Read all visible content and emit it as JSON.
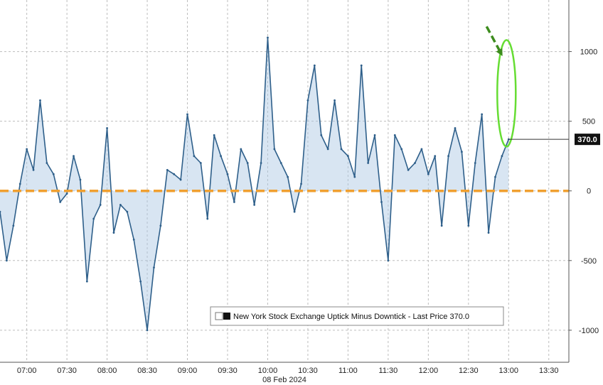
{
  "chart_data": {
    "type": "line",
    "date_label": "08 Feb 2024",
    "x_ticks": [
      "07:00",
      "07:30",
      "08:00",
      "08:30",
      "09:00",
      "09:30",
      "10:00",
      "10:30",
      "11:00",
      "11:30",
      "12:00",
      "12:30",
      "13:00",
      "13:30"
    ],
    "y_ticks": [
      1000,
      500,
      0,
      -500,
      -1000
    ],
    "y_tick_labels": [
      "1000",
      "500",
      "0",
      "-500",
      "-1000"
    ],
    "ylim": [
      -1230,
      1370
    ],
    "xlim": [
      "06:40",
      "13:45"
    ],
    "grid": true,
    "legend": "New York Stock Exchange Uptick Minus Downtick - Last Price 370.0",
    "legend_placement": "bottom-right",
    "last_price_label": "370.0",
    "last_price": 370,
    "zero_line": 0,
    "series": [
      {
        "x": [
          "06:40",
          "06:45",
          "06:50",
          "06:55",
          "07:00",
          "07:05",
          "07:10",
          "07:15",
          "07:20",
          "07:25",
          "07:30",
          "07:35",
          "07:40",
          "07:45",
          "07:50",
          "07:55",
          "08:00",
          "08:05",
          "08:10",
          "08:15",
          "08:20",
          "08:25",
          "08:30",
          "08:35",
          "08:40",
          "08:45",
          "08:50",
          "08:55",
          "09:00",
          "09:05",
          "09:10",
          "09:15",
          "09:20",
          "09:25",
          "09:30",
          "09:35",
          "09:40",
          "09:45",
          "09:50",
          "09:55",
          "10:00",
          "10:05",
          "10:10",
          "10:15",
          "10:20",
          "10:25",
          "10:30",
          "10:35",
          "10:40",
          "10:45",
          "10:50",
          "10:55",
          "11:00",
          "11:05",
          "11:10",
          "11:15",
          "11:20",
          "11:25",
          "11:30",
          "11:35",
          "11:40",
          "11:45",
          "11:50",
          "11:55",
          "12:00",
          "12:05",
          "12:10",
          "12:15",
          "12:20",
          "12:25",
          "12:30",
          "12:35",
          "12:40",
          "12:45",
          "12:50",
          "12:55",
          "13:00"
        ],
        "values": [
          -150,
          -500,
          -250,
          50,
          300,
          150,
          650,
          200,
          120,
          -80,
          -20,
          250,
          80,
          -650,
          -200,
          -100,
          450,
          -300,
          -100,
          -150,
          -350,
          -650,
          -1000,
          -550,
          -250,
          150,
          120,
          80,
          550,
          250,
          200,
          -200,
          400,
          250,
          120,
          -80,
          300,
          200,
          -100,
          200,
          1100,
          300,
          200,
          100,
          -150,
          50,
          650,
          900,
          400,
          300,
          650,
          300,
          250,
          100,
          900,
          200,
          400,
          -80,
          -500,
          400,
          300,
          150,
          200,
          300,
          120,
          250,
          -250,
          250,
          450,
          280,
          -250,
          200,
          550,
          -300,
          100,
          250,
          370
        ]
      }
    ]
  },
  "annotation": {
    "highlight_color": "#66dd33",
    "arrow_color": "#3d8c1e"
  },
  "colors": {
    "series": "#2e5f8a",
    "series_fill": "#a9c6e2",
    "zero_line": "#f0a030",
    "grid": "#bdbdbd",
    "last_price_box": "#111111"
  }
}
